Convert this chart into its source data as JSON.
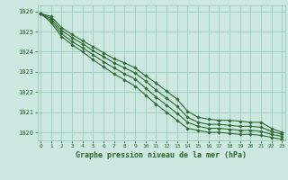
{
  "title": "Graphe pression niveau de la mer (hPa)",
  "bg_color": "#cce8e0",
  "grid_color": "#99ccbb",
  "line_color": "#2d6a2d",
  "marker_color": "#2d6a2d",
  "xlim": [
    -0.3,
    23.3
  ],
  "ylim": [
    1019.6,
    1026.3
  ],
  "yticks": [
    1020,
    1021,
    1022,
    1023,
    1024,
    1025,
    1026
  ],
  "xticks": [
    0,
    1,
    2,
    3,
    4,
    5,
    6,
    7,
    8,
    9,
    10,
    11,
    12,
    13,
    14,
    15,
    16,
    17,
    18,
    19,
    20,
    21,
    22,
    23
  ],
  "series": [
    [
      1025.9,
      1025.75,
      1025.2,
      1024.85,
      1024.55,
      1024.25,
      1023.95,
      1023.65,
      1023.45,
      1023.2,
      1022.8,
      1022.45,
      1022.05,
      1021.65,
      1021.05,
      1020.75,
      1020.65,
      1020.6,
      1020.6,
      1020.55,
      1020.5,
      1020.5,
      1020.2,
      1020.0
    ],
    [
      1025.9,
      1025.65,
      1025.05,
      1024.7,
      1024.4,
      1024.05,
      1023.75,
      1023.45,
      1023.2,
      1022.95,
      1022.55,
      1022.1,
      1021.7,
      1021.3,
      1020.75,
      1020.5,
      1020.4,
      1020.4,
      1020.35,
      1020.3,
      1020.3,
      1020.25,
      1020.05,
      1019.9
    ],
    [
      1025.9,
      1025.55,
      1024.9,
      1024.5,
      1024.2,
      1023.85,
      1023.5,
      1023.2,
      1022.9,
      1022.65,
      1022.2,
      1021.75,
      1021.35,
      1020.95,
      1020.5,
      1020.3,
      1020.2,
      1020.2,
      1020.15,
      1020.1,
      1020.1,
      1020.05,
      1019.9,
      1019.8
    ],
    [
      1025.9,
      1025.45,
      1024.75,
      1024.35,
      1024.0,
      1023.6,
      1023.25,
      1022.9,
      1022.6,
      1022.3,
      1021.85,
      1021.4,
      1021.0,
      1020.6,
      1020.2,
      1020.1,
      1020.0,
      1020.0,
      1019.95,
      1019.9,
      1019.9,
      1019.85,
      1019.75,
      1019.65
    ]
  ]
}
